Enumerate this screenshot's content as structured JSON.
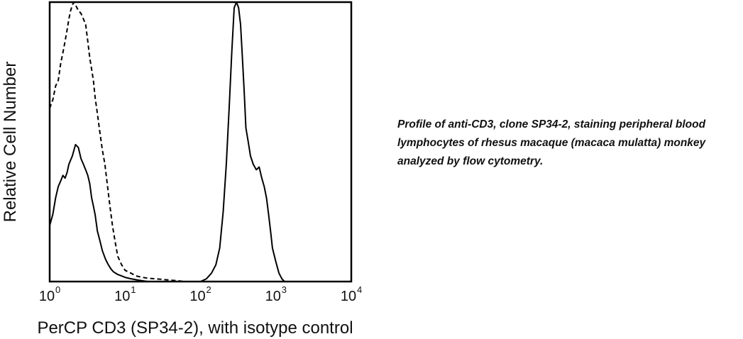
{
  "caption": "Profile of anti-CD3, clone SP34-2, staining peripheral blood lymphocytes of rhesus macaque (macaca mulatta) monkey analyzed by flow cytometry.",
  "chart_data": {
    "type": "line",
    "title": "",
    "xlabel": "PerCP CD3 (SP34-2), with isotype control",
    "ylabel": "Relative Cell Number",
    "xscale": "log",
    "xlim": [
      1,
      10000
    ],
    "ylim": [
      0,
      100
    ],
    "xticks": [
      {
        "value": 1,
        "base": "10",
        "exp": "0"
      },
      {
        "value": 10,
        "base": "10",
        "exp": "1"
      },
      {
        "value": 100,
        "base": "10",
        "exp": "2"
      },
      {
        "value": 1000,
        "base": "10",
        "exp": "3"
      },
      {
        "value": 10000,
        "base": "10",
        "exp": "4"
      }
    ],
    "grid": false,
    "legend": "none",
    "series": [
      {
        "style": "dashed",
        "color": "#000000",
        "x": [
          1,
          1.1,
          1.2,
          1.3,
          1.4,
          1.5,
          1.6,
          1.7,
          1.8,
          1.9,
          2.0,
          2.1,
          2.2,
          2.4,
          2.6,
          2.8,
          3.0,
          3.2,
          3.4,
          3.6,
          3.8,
          4.0,
          4.3,
          4.6,
          5.0,
          5.4,
          5.8,
          6.3,
          6.8,
          7.4,
          8.0,
          9.0,
          10,
          12,
          14,
          17,
          20,
          25,
          30,
          40,
          50,
          60
        ],
        "y": [
          62,
          65,
          70,
          72,
          78,
          82,
          86,
          90,
          94,
          97,
          99,
          100,
          99,
          97,
          96,
          94,
          92,
          86,
          80,
          76,
          72,
          66,
          60,
          54,
          47,
          42,
          35,
          27,
          20,
          14,
          9,
          6,
          4,
          3,
          2,
          1.5,
          1.2,
          1,
          0.8,
          0.5,
          0.3,
          0
        ]
      },
      {
        "style": "solid",
        "color": "#000000",
        "x": [
          1,
          1.1,
          1.2,
          1.3,
          1.4,
          1.5,
          1.6,
          1.7,
          1.8,
          2.0,
          2.2,
          2.4,
          2.6,
          2.8,
          3.0,
          3.2,
          3.4,
          3.6,
          3.8,
          4.0,
          4.3,
          4.6,
          5.0,
          5.5,
          6.0,
          6.5,
          7.0,
          8.0,
          9.0,
          10,
          12,
          15,
          20
        ],
        "y": [
          20,
          24,
          30,
          34,
          36,
          38,
          37,
          39,
          42,
          45,
          49,
          48,
          44,
          42,
          40,
          38,
          35,
          30,
          27,
          24,
          18,
          15,
          11,
          8,
          6,
          4.5,
          3.5,
          2.5,
          2,
          1.5,
          1,
          0.5,
          0
        ]
      },
      {
        "style": "solid",
        "color": "#000000",
        "x": [
          100,
          120,
          140,
          160,
          180,
          200,
          220,
          240,
          260,
          280,
          300,
          320,
          340,
          360,
          380,
          400,
          430,
          460,
          500,
          550,
          600,
          650,
          700,
          750,
          800,
          850,
          900,
          1000,
          1100,
          1200,
          1300
        ],
        "y": [
          0,
          1,
          3,
          6,
          12,
          25,
          42,
          62,
          82,
          98,
          100,
          98,
          92,
          80,
          68,
          55,
          50,
          45,
          42,
          40,
          41,
          37,
          34,
          30,
          24,
          18,
          12,
          7,
          3,
          1,
          0
        ]
      }
    ]
  }
}
